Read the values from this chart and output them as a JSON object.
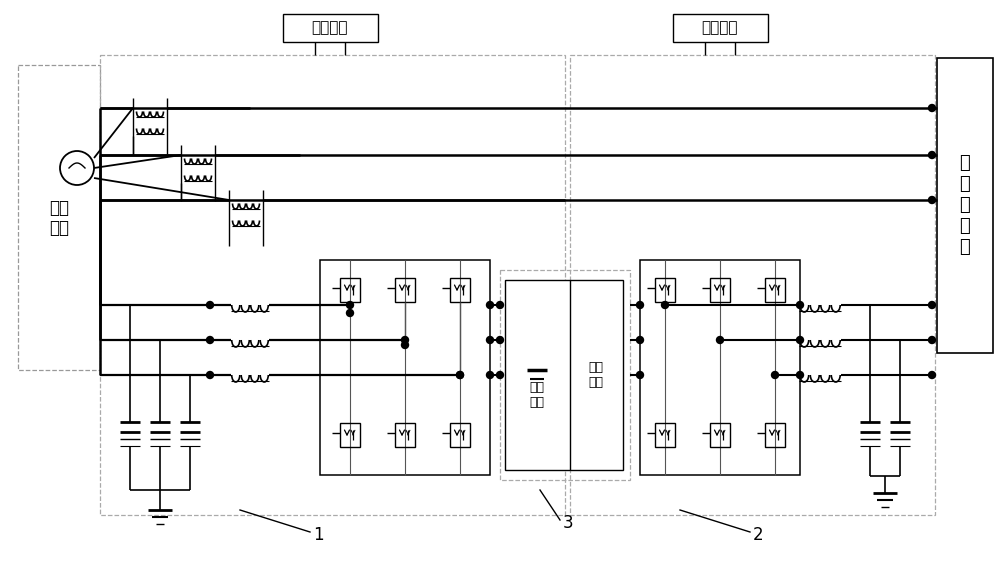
{
  "bg_color": "#ffffff",
  "label_guangfu1": "光伏并网",
  "label_guangfu2": "光伏并网",
  "label_shidian": "市电\n配网",
  "label_feixianxing": "非\n线\n性\n负\n载",
  "label_xuchaizhuangzhi": "蓄电\n装置",
  "label_guangfuzulie": "光伏\n阵列",
  "label_1": "1",
  "label_2": "2",
  "label_3": "3"
}
